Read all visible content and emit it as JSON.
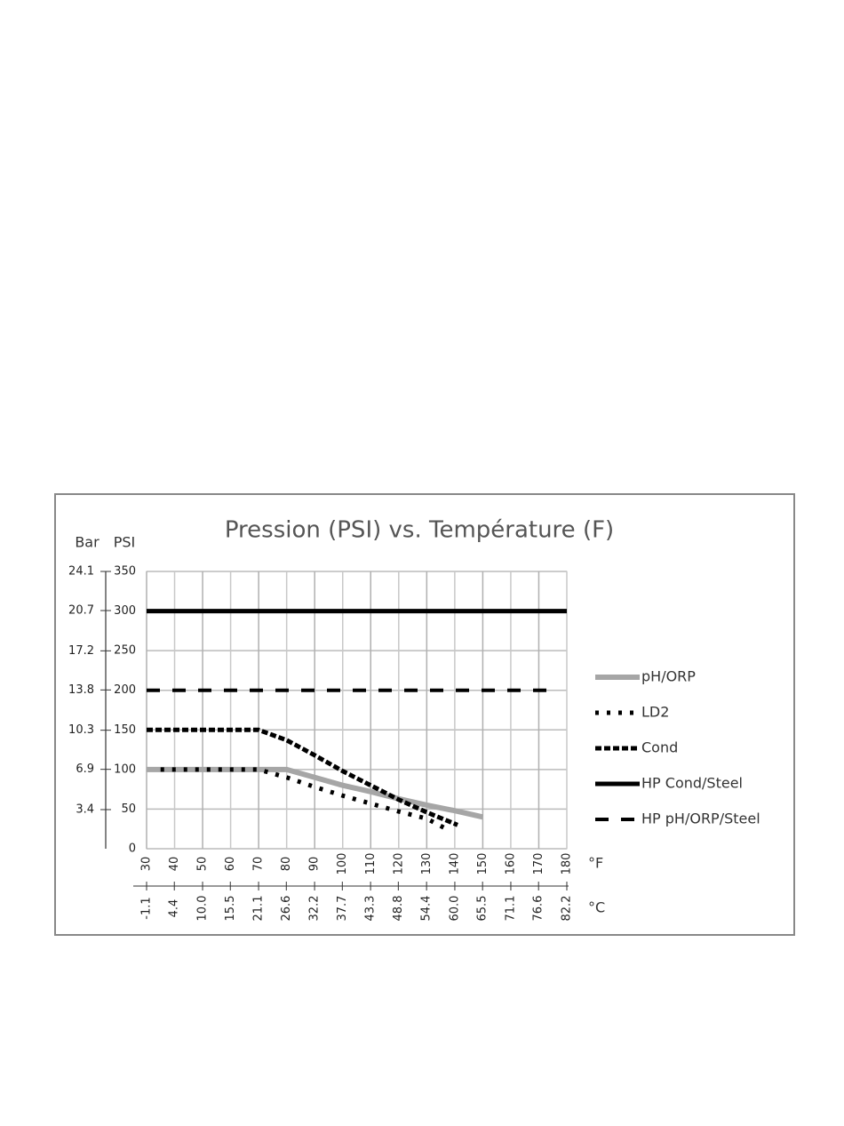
{
  "chart_data": {
    "type": "line",
    "title": "Pression (PSI) vs. Température (F)",
    "y_label": "PSI",
    "y2_label": "Bar",
    "x_label": "°F",
    "x2_label": "°C",
    "xlim": [
      30,
      180
    ],
    "xticks": [
      30,
      40,
      50,
      60,
      70,
      80,
      90,
      100,
      110,
      120,
      130,
      140,
      150,
      160,
      170,
      180
    ],
    "x2lim": [
      -1.1,
      82.2
    ],
    "x2ticks": [
      -1.1,
      4.4,
      {
        "value": 10,
        "label": "10.0"
      },
      15.5,
      21.1,
      26.6,
      32.2,
      37.7,
      43.3,
      48.8,
      54.4,
      {
        "value": 60,
        "label": "60.0"
      },
      65.5,
      71.1,
      76.6,
      82.2
    ],
    "ylim": [
      0,
      350
    ],
    "yticks": [
      0,
      50,
      100,
      150,
      200,
      250,
      300,
      350
    ],
    "y2lim": [
      0,
      24.1
    ],
    "y2ticks": [
      3.4,
      6.9,
      10.3,
      13.8,
      17.2,
      20.7,
      24.1
    ],
    "grid": true,
    "legend": "right",
    "series": [
      {
        "name": "pH/ORP",
        "color": "#a6a6a6",
        "style": "solid",
        "x": [
          30,
          80,
          90,
          100,
          110,
          120,
          130,
          140,
          150
        ],
        "values": [
          100,
          100,
          90,
          80,
          72,
          63,
          55,
          48,
          40
        ]
      },
      {
        "name": "LD2",
        "color": "#000000",
        "style": "dotted",
        "x": [
          35,
          70,
          80,
          90,
          100,
          110,
          120,
          130,
          137
        ],
        "values": [
          100,
          100,
          90,
          78,
          67,
          57,
          47,
          38,
          25
        ]
      },
      {
        "name": "Cond",
        "color": "#000000",
        "style": "dashed",
        "x": [
          30,
          70,
          80,
          90,
          100,
          110,
          120,
          130,
          141
        ],
        "values": [
          150,
          150,
          137,
          118,
          98,
          80,
          62,
          46,
          30
        ]
      },
      {
        "name": "HP Cond/Steel",
        "color": "#000000",
        "style": "solid",
        "x": [
          30,
          180
        ],
        "values": [
          300,
          300
        ]
      },
      {
        "name": "HP pH/ORP/Steel",
        "color": "#000000",
        "style": "longdash",
        "x": [
          30,
          176
        ],
        "values": [
          200,
          200
        ]
      }
    ]
  }
}
